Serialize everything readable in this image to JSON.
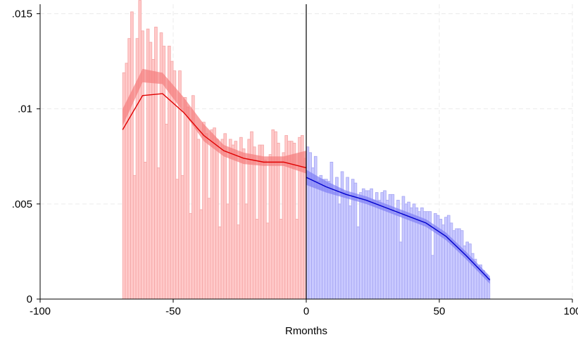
{
  "chart_data": {
    "type": "bar",
    "title": "",
    "xlabel": "Rmonths",
    "ylabel": "",
    "xlim": [
      -100,
      100
    ],
    "ylim": [
      0,
      0.0155
    ],
    "x_ticks": [
      -100,
      -50,
      0,
      50,
      100
    ],
    "x_tick_labels": [
      "-100",
      "-50",
      "0",
      "50",
      "100"
    ],
    "y_ticks": [
      0,
      0.005,
      0.01,
      0.015
    ],
    "y_tick_labels": [
      "0",
      ".005",
      ".01",
      ".015"
    ],
    "grid": true,
    "cutoff": 0,
    "bin_width": 1,
    "colors": {
      "left_bar_fill": "#ffcaca",
      "left_bar_stroke": "#f4a5a5",
      "left_band": "#f57c7c",
      "left_line": "#e00000",
      "right_bar_fill": "#cacaff",
      "right_bar_stroke": "#a5a5f2",
      "right_band": "#7f7ff5",
      "right_line": "#0000cc",
      "grid": "#ebebeb",
      "axis": "#000000"
    },
    "histogram_left": {
      "x_start": -69,
      "values": [
        0.0119,
        0.0124,
        0.0137,
        0.0151,
        0.0065,
        0.0137,
        0.0157,
        0.0141,
        0.0072,
        0.0142,
        0.0135,
        0.0126,
        0.0143,
        0.0069,
        0.014,
        0.0133,
        0.0092,
        0.0133,
        0.0125,
        0.012,
        0.0063,
        0.012,
        0.0065,
        0.0106,
        0.0101,
        0.0045,
        0.0107,
        0.009,
        0.0084,
        0.0047,
        0.0093,
        0.0087,
        0.0053,
        0.0089,
        0.009,
        0.0084,
        0.0038,
        0.0084,
        0.0087,
        0.005,
        0.0084,
        0.0081,
        0.0083,
        0.0039,
        0.0085,
        0.0079,
        0.005,
        0.0084,
        0.0088,
        0.008,
        0.0042,
        0.0081,
        0.0081,
        0.0073,
        0.004,
        0.0076,
        0.0089,
        0.0088,
        0.0082,
        0.0042,
        0.0077,
        0.0086,
        0.0083,
        0.0083,
        0.0082,
        0.0042,
        0.0085,
        0.0086,
        0.0074
      ]
    },
    "histogram_right": {
      "x_start": 0,
      "values": [
        0.008,
        0.0077,
        0.0069,
        0.0075,
        0.0062,
        0.0065,
        0.0063,
        0.0063,
        0.0062,
        0.0072,
        0.0056,
        0.0064,
        0.005,
        0.0067,
        0.0056,
        0.0064,
        0.0049,
        0.0063,
        0.0061,
        0.0038,
        0.0056,
        0.0058,
        0.0057,
        0.0057,
        0.0058,
        0.0052,
        0.0056,
        0.0052,
        0.0056,
        0.0057,
        0.0052,
        0.0055,
        0.0055,
        0.0045,
        0.0052,
        0.003,
        0.0054,
        0.005,
        0.0051,
        0.0048,
        0.005,
        0.0048,
        0.0046,
        0.0048,
        0.0046,
        0.0046,
        0.0046,
        0.0023,
        0.0045,
        0.0044,
        0.0042,
        0.0039,
        0.0043,
        0.0044,
        0.004,
        0.0036,
        0.0037,
        0.0037,
        0.0036,
        0.0028,
        0.003,
        0.0029,
        0.0024,
        0.0021,
        0.0017,
        0.0018,
        0.0015,
        0.0013,
        0.0011
      ]
    },
    "series": [
      {
        "side": "left",
        "x": [
          -69,
          -61.5,
          -54,
          -46,
          -38.5,
          -31,
          -23.5,
          -16,
          -8.5,
          0
        ],
        "y": [
          0.0089,
          0.0107,
          0.0108,
          0.0098,
          0.0086,
          0.0078,
          0.0074,
          0.0072,
          0.0072,
          0.0069
        ],
        "ci_lower": [
          0.0091,
          0.0114,
          0.0113,
          0.0098,
          0.0083,
          0.0075,
          0.0071,
          0.007,
          0.007,
          0.0066
        ],
        "ci_upper": [
          0.01,
          0.0121,
          0.0119,
          0.0106,
          0.0092,
          0.0081,
          0.0077,
          0.0075,
          0.0075,
          0.0078
        ]
      },
      {
        "side": "right",
        "x": [
          0,
          7.5,
          15,
          22.5,
          30,
          37.5,
          45,
          52.5,
          60,
          69
        ],
        "y": [
          0.0064,
          0.0059,
          0.0055,
          0.0052,
          0.0048,
          0.0044,
          0.004,
          0.0033,
          0.0023,
          0.001
        ],
        "ci_lower": [
          0.006,
          0.0056,
          0.0053,
          0.005,
          0.0046,
          0.0042,
          0.0038,
          0.0031,
          0.0021,
          0.0008
        ],
        "ci_upper": [
          0.0068,
          0.0062,
          0.0057,
          0.0054,
          0.005,
          0.0046,
          0.0042,
          0.0035,
          0.0025,
          0.0012
        ]
      }
    ]
  }
}
